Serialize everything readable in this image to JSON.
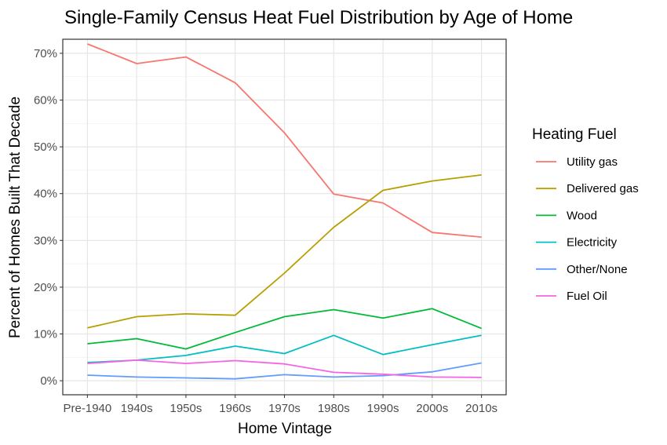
{
  "chart_data": {
    "type": "line",
    "title": "Single-Family Census Heat Fuel Distribution by Age of Home",
    "xlabel": "Home Vintage",
    "ylabel": "Percent of Homes Built That Decade",
    "categories": [
      "Pre-1940",
      "1940s",
      "1950s",
      "1960s",
      "1970s",
      "1980s",
      "1990s",
      "2000s",
      "2010s"
    ],
    "y_ticks": [
      "0%",
      "10%",
      "20%",
      "30%",
      "40%",
      "50%",
      "60%",
      "70%"
    ],
    "ylim": [
      -3,
      73
    ],
    "grid": true,
    "legend_position": "right",
    "legend_title": "Heating Fuel",
    "series": [
      {
        "name": "Utility gas",
        "color": "#F8766D",
        "values": [
          72.0,
          67.8,
          69.2,
          63.7,
          53.0,
          39.9,
          38.0,
          31.7,
          30.7
        ]
      },
      {
        "name": "Delivered gas",
        "color": "#B79F00",
        "values": [
          11.3,
          13.7,
          14.3,
          14.0,
          23.0,
          32.8,
          40.7,
          42.7,
          44.0
        ]
      },
      {
        "name": "Wood",
        "color": "#00BA38",
        "values": [
          7.9,
          9.0,
          6.8,
          10.3,
          13.7,
          15.2,
          13.4,
          15.4,
          11.2
        ]
      },
      {
        "name": "Electricity",
        "color": "#00BFC4",
        "values": [
          3.9,
          4.4,
          5.4,
          7.4,
          5.8,
          9.7,
          5.6,
          7.7,
          9.7
        ]
      },
      {
        "name": "Other/None",
        "color": "#619CFF",
        "values": [
          1.2,
          0.8,
          0.6,
          0.4,
          1.3,
          0.8,
          1.1,
          1.9,
          3.8
        ]
      },
      {
        "name": "Fuel Oil",
        "color": "#F564E3",
        "values": [
          3.7,
          4.4,
          3.7,
          4.3,
          3.6,
          1.8,
          1.4,
          0.8,
          0.7
        ]
      }
    ]
  }
}
